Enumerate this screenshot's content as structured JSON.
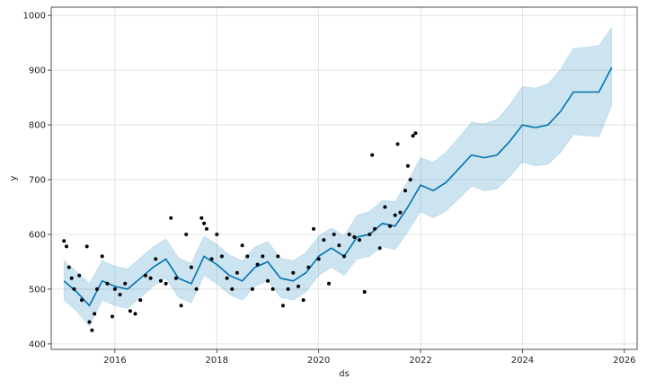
{
  "chart_data": {
    "type": "line",
    "title": "",
    "xlabel": "ds",
    "ylabel": "y",
    "xlim": [
      2014.75,
      2026.25
    ],
    "ylim": [
      390,
      1015
    ],
    "grid": true,
    "x_ticks": [
      2016,
      2018,
      2020,
      2022,
      2024,
      2026
    ],
    "x_tick_labels": [
      "2016",
      "2018",
      "2020",
      "2022",
      "2024",
      "2026"
    ],
    "y_ticks": [
      400,
      500,
      600,
      700,
      800,
      900,
      1000
    ],
    "y_tick_labels": [
      "400",
      "500",
      "600",
      "700",
      "800",
      "900",
      "1000"
    ],
    "colors": {
      "forecast": "#0072b2",
      "uncertainty": "#0072b2",
      "observed": "#000000",
      "grid": "#dddddd"
    },
    "forecast_x": [
      2015.0,
      2015.25,
      2015.5,
      2015.75,
      2016.0,
      2016.25,
      2016.5,
      2016.75,
      2017.0,
      2017.25,
      2017.5,
      2017.75,
      2018.0,
      2018.25,
      2018.5,
      2018.75,
      2019.0,
      2019.25,
      2019.5,
      2019.75,
      2020.0,
      2020.25,
      2020.5,
      2020.75,
      2021.0,
      2021.25,
      2021.5,
      2021.75,
      2022.0,
      2022.25,
      2022.5,
      2022.75,
      2023.0,
      2023.25,
      2023.5,
      2023.75,
      2024.0,
      2024.25,
      2024.5,
      2024.75,
      2025.0,
      2025.25,
      2025.5,
      2025.75
    ],
    "forecast_y": [
      515,
      495,
      470,
      515,
      505,
      500,
      520,
      540,
      555,
      520,
      510,
      560,
      545,
      525,
      515,
      540,
      550,
      520,
      515,
      530,
      560,
      575,
      560,
      595,
      600,
      620,
      615,
      650,
      690,
      680,
      695,
      720,
      745,
      740,
      745,
      770,
      800,
      795,
      800,
      825,
      860,
      860,
      860,
      905
    ],
    "forecast_lower": [
      480,
      460,
      432,
      480,
      470,
      465,
      485,
      505,
      520,
      485,
      475,
      525,
      510,
      490,
      480,
      505,
      515,
      485,
      480,
      495,
      525,
      540,
      525,
      555,
      560,
      578,
      572,
      605,
      642,
      630,
      643,
      665,
      688,
      680,
      683,
      706,
      732,
      725,
      728,
      750,
      782,
      780,
      778,
      835
    ],
    "forecast_upper": [
      552,
      532,
      510,
      552,
      542,
      537,
      557,
      577,
      592,
      557,
      547,
      597,
      582,
      562,
      552,
      577,
      587,
      557,
      552,
      567,
      597,
      612,
      597,
      635,
      642,
      662,
      660,
      697,
      740,
      732,
      750,
      777,
      805,
      802,
      810,
      837,
      870,
      867,
      875,
      902,
      940,
      942,
      945,
      978
    ],
    "points_x": [
      2015.0,
      2015.05,
      2015.1,
      2015.15,
      2015.2,
      2015.3,
      2015.35,
      2015.45,
      2015.5,
      2015.55,
      2015.6,
      2015.65,
      2015.75,
      2015.85,
      2015.95,
      2016.0,
      2016.1,
      2016.2,
      2016.3,
      2016.4,
      2016.5,
      2016.6,
      2016.7,
      2016.8,
      2016.9,
      2017.0,
      2017.1,
      2017.2,
      2017.3,
      2017.4,
      2017.5,
      2017.6,
      2017.7,
      2017.75,
      2017.8,
      2017.9,
      2018.0,
      2018.1,
      2018.2,
      2018.3,
      2018.4,
      2018.5,
      2018.6,
      2018.7,
      2018.8,
      2018.9,
      2019.0,
      2019.1,
      2019.2,
      2019.3,
      2019.4,
      2019.5,
      2019.6,
      2019.7,
      2019.8,
      2019.9,
      2020.0,
      2020.1,
      2020.2,
      2020.3,
      2020.4,
      2020.5,
      2020.6,
      2020.7,
      2020.8,
      2020.9,
      2021.0,
      2021.05,
      2021.1,
      2021.2,
      2021.3,
      2021.4,
      2021.5,
      2021.55,
      2021.6,
      2021.7,
      2021.75,
      2021.8,
      2021.85,
      2021.9
    ],
    "points_y": [
      588,
      578,
      540,
      520,
      500,
      525,
      480,
      578,
      440,
      425,
      455,
      500,
      560,
      510,
      450,
      500,
      490,
      510,
      460,
      455,
      480,
      525,
      520,
      555,
      515,
      510,
      630,
      520,
      470,
      600,
      540,
      500,
      630,
      620,
      610,
      555,
      600,
      560,
      520,
      500,
      530,
      580,
      560,
      500,
      545,
      560,
      515,
      500,
      560,
      470,
      500,
      530,
      505,
      480,
      540,
      610,
      555,
      590,
      510,
      600,
      580,
      560,
      600,
      595,
      590,
      495,
      600,
      745,
      610,
      575,
      650,
      615,
      635,
      765,
      640,
      680,
      725,
      700,
      780,
      785
    ],
    "forecast_label": "",
    "observed_label": ""
  }
}
